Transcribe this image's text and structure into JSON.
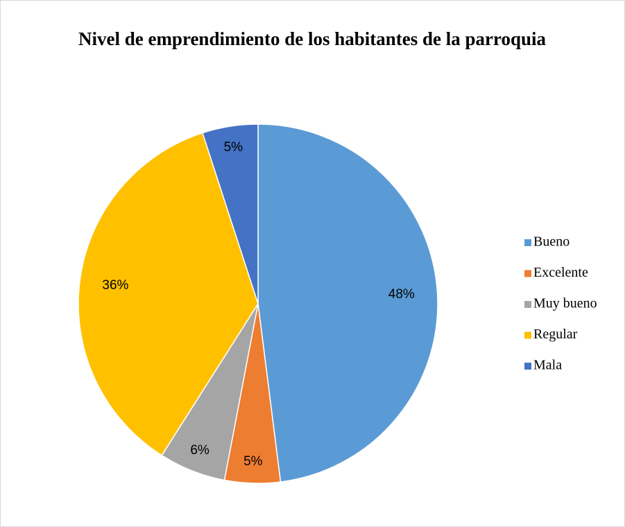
{
  "chart_data": {
    "type": "pie",
    "title": "Nivel de emprendimiento de los habitantes de la parroquia",
    "categories": [
      "Bueno",
      "Excelente",
      "Muy bueno",
      "Regular",
      "Mala"
    ],
    "values": [
      48,
      5,
      6,
      36,
      5
    ],
    "value_labels": [
      "48%",
      "5%",
      "6%",
      "36%",
      "5%"
    ],
    "colors": [
      "#5b9bd5",
      "#ed7d31",
      "#a5a5a5",
      "#ffc000",
      "#4472c4"
    ],
    "legend": "right"
  }
}
